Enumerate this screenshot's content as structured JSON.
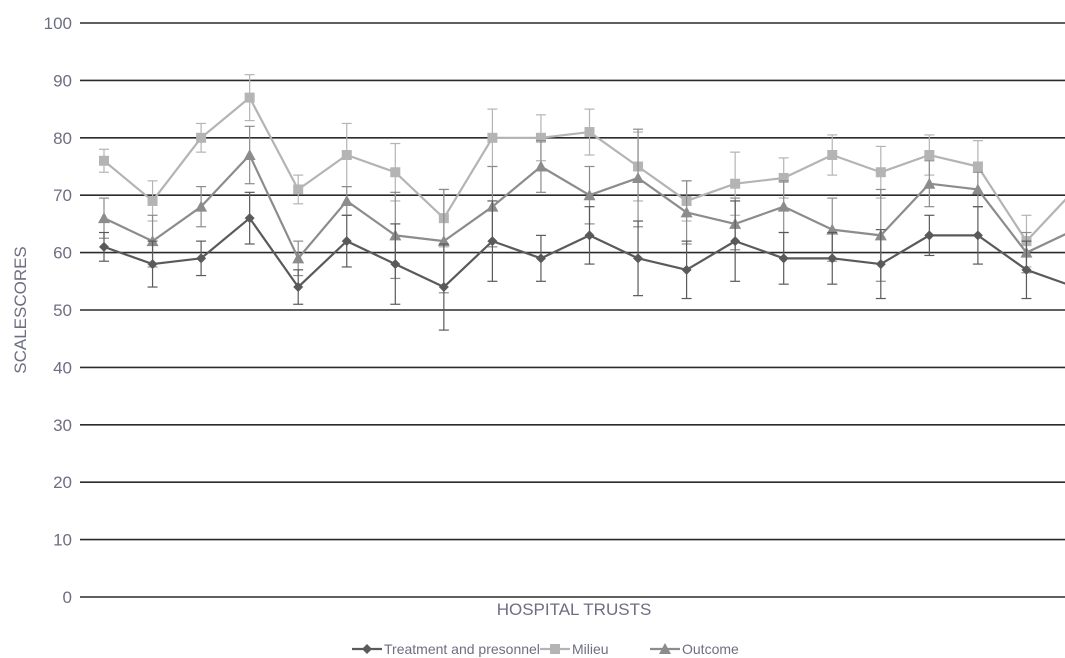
{
  "chart_data": {
    "type": "line",
    "xlabel": "HOSPITAL TRUSTS",
    "ylabel": "SCALESCORES",
    "ylim": [
      0,
      100
    ],
    "yticks": [
      0,
      10,
      20,
      30,
      40,
      50,
      60,
      70,
      80,
      90,
      100
    ],
    "grid": "horizontal",
    "legend_position": "bottom",
    "error_bars": true,
    "x": [
      1,
      2,
      3,
      4,
      5,
      6,
      7,
      8,
      9,
      10,
      11,
      12,
      13,
      14,
      15,
      16,
      17,
      18,
      19,
      20,
      21
    ],
    "series": [
      {
        "name": "Treatment and presonnel",
        "marker": "diamond",
        "color": "#5a5a5a",
        "values": [
          61,
          58,
          59,
          66,
          54,
          62,
          58,
          54,
          62,
          59,
          63,
          59,
          57,
          62,
          59,
          59,
          58,
          63,
          63,
          57,
          54
        ],
        "err": [
          2.5,
          4,
          3,
          4.5,
          3,
          4.5,
          7,
          7.5,
          7,
          4,
          5,
          6.5,
          5,
          7,
          4.5,
          4.5,
          6,
          3.5,
          5,
          5,
          4.5
        ]
      },
      {
        "name": "Milieu",
        "marker": "square",
        "color": "#b4b4b4",
        "values": [
          76,
          69,
          80,
          87,
          71,
          77,
          74,
          66,
          80,
          80,
          81,
          75,
          69,
          72,
          73,
          77,
          74,
          77,
          75,
          62,
          71
        ],
        "err": [
          2,
          3.5,
          2.5,
          4,
          2.5,
          5.5,
          5,
          5,
          5,
          4,
          4,
          6,
          3.5,
          5.5,
          3.5,
          3.5,
          4.5,
          3.5,
          4.5,
          4.5,
          4.5
        ]
      },
      {
        "name": "Outcome",
        "marker": "triangle",
        "color": "#8c8c8c",
        "values": [
          66,
          62,
          68,
          77,
          59,
          69,
          63,
          62,
          68,
          75,
          70,
          73,
          67,
          65,
          68,
          64,
          63,
          72,
          71,
          60,
          64
        ],
        "err": [
          3.5,
          4.5,
          3.5,
          5,
          3,
          2.5,
          7.5,
          9,
          7,
          4.5,
          5,
          8.5,
          5.5,
          4.5,
          4.5,
          5.5,
          8,
          4,
          3,
          3.5,
          2.5
        ]
      }
    ]
  }
}
